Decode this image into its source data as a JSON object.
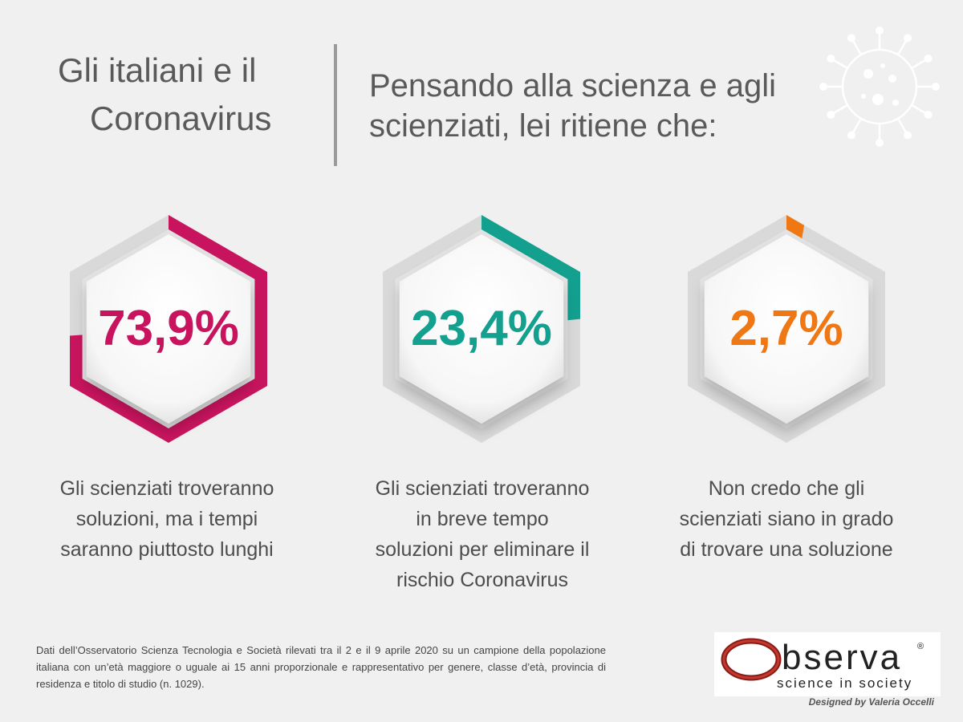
{
  "header": {
    "title_line1": "Gli italiani e il",
    "title_line2": "Coronavirus",
    "question_line1": "Pensando alla scienza e agli",
    "question_line2": "scienziati, lei ritiene che:"
  },
  "chart_data": {
    "type": "pie",
    "values": [
      73.9,
      23.4,
      2.7
    ],
    "value_labels": [
      "73,9%",
      "23,4%",
      "2,7%"
    ],
    "categories": [
      "Gli scienziati troveranno soluzioni, ma i tempi saranno piuttosto lunghi",
      "Gli scienziati troveranno in breve tempo soluzioni per eliminare il rischio Coronavirus",
      "Non credo che gli scienziati siano in grado di trovare una soluzione"
    ],
    "colors": [
      "#c8145e",
      "#13a08e",
      "#f07814"
    ]
  },
  "cards": [
    {
      "value": 73.9,
      "label": "73,9%",
      "color": "#c8145e",
      "caption_lines": [
        "Gli scienziati troveranno",
        "soluzioni, ma i tempi",
        "saranno piuttosto lunghi"
      ]
    },
    {
      "value": 23.4,
      "label": "23,4%",
      "color": "#13a08e",
      "caption_lines": [
        "Gli scienziati troveranno",
        "in breve tempo",
        "soluzioni per eliminare il",
        "rischio Coronavirus"
      ]
    },
    {
      "value": 2.7,
      "label": "2,7%",
      "color": "#f07814",
      "caption_lines": [
        "Non credo che gli",
        "scienziati siano in grado",
        "di trovare una soluzione"
      ]
    }
  ],
  "footer": {
    "source": "Dati dell’Osservatorio Scienza Tecnologia e Società rilevati tra il 2 e il 9 aprile 2020 su un campione della popolazione italiana con un’età maggiore o uguale ai 15 anni proporzionale e rappresentativo per genere, classe d’età, provincia di residenza e titolo di studio (n. 1029).",
    "logo_word": "bserva",
    "logo_reg": "®",
    "logo_tagline": "science in society",
    "credit": "Designed by Valeria Occelli"
  },
  "icons": {
    "virus": "coronavirus-icon",
    "logo": "observa-logo"
  }
}
